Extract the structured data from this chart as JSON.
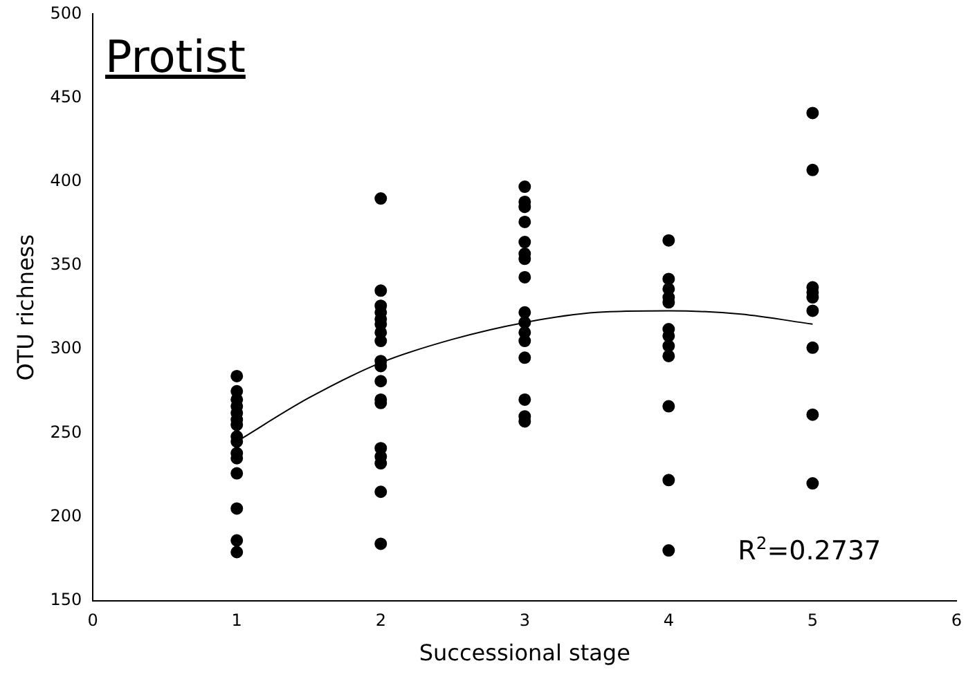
{
  "chart_data": {
    "type": "scatter",
    "title": "Protist",
    "xlabel": "Successional stage",
    "ylabel": "OTU richness",
    "xlim": [
      0,
      6
    ],
    "xticks": [
      0,
      1,
      2,
      3,
      4,
      5,
      6
    ],
    "ylim": [
      150,
      500
    ],
    "yticks": [
      150,
      200,
      250,
      300,
      350,
      400,
      450,
      500
    ],
    "grid": false,
    "legend": false,
    "marker": "circle",
    "annotations": [
      "R$^{2}$=0.2737"
    ],
    "series": [
      {
        "color": "#000000",
        "x": [
          1,
          1,
          1,
          1,
          1,
          1,
          1,
          1,
          1,
          1,
          1,
          1,
          1,
          1,
          1,
          2,
          2,
          2,
          2,
          2,
          2,
          2,
          2,
          2,
          2,
          2,
          2,
          2,
          2,
          2,
          2,
          2,
          2,
          3,
          3,
          3,
          3,
          3,
          3,
          3,
          3,
          3,
          3,
          3,
          3,
          3,
          3,
          3,
          3,
          4,
          4,
          4,
          4,
          4,
          4,
          4,
          4,
          4,
          4,
          4,
          4,
          5,
          5,
          5,
          5,
          5,
          5,
          5,
          5,
          5
        ],
        "values": [
          284,
          275,
          270,
          266,
          262,
          258,
          255,
          248,
          245,
          238,
          235,
          226,
          205,
          186,
          179,
          390,
          335,
          326,
          322,
          318,
          315,
          310,
          305,
          293,
          290,
          281,
          270,
          268,
          241,
          236,
          232,
          215,
          184,
          397,
          388,
          385,
          376,
          364,
          357,
          354,
          343,
          322,
          316,
          310,
          305,
          295,
          270,
          260,
          257,
          365,
          342,
          336,
          331,
          328,
          312,
          308,
          302,
          296,
          266,
          222,
          180,
          441,
          407,
          337,
          334,
          331,
          323,
          301,
          261,
          220
        ]
      },
      {
        "type": "line",
        "color": "#000000",
        "marker": "none",
        "line_style": "solid",
        "x": [
          1,
          1.5,
          2,
          2.5,
          3,
          3.5,
          4,
          4.5,
          5
        ],
        "values": [
          245,
          271,
          292,
          306,
          316,
          322,
          323,
          321,
          315
        ]
      }
    ]
  }
}
